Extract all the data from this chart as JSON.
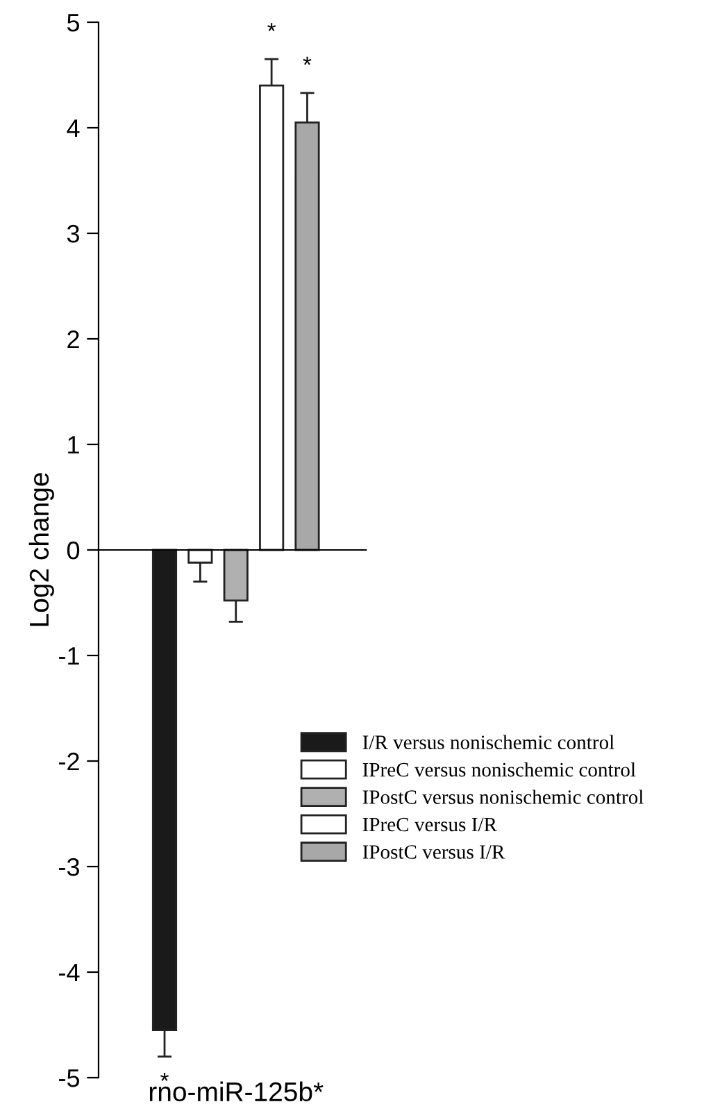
{
  "chart_data": {
    "type": "bar",
    "ylabel": "Log2 change",
    "categories": [
      "rno-miR-125b*"
    ],
    "series": [
      {
        "name": "I/R versus nonischemic control",
        "color": "#1a1a1a",
        "values": [
          -4.55
        ],
        "errors": [
          [
            -4.8,
            -4.55
          ]
        ]
      },
      {
        "name": "IPreC versus nonischemic control",
        "color": "#ffffff",
        "values": [
          -0.12
        ],
        "errors": [
          [
            -0.3,
            -0.12
          ]
        ]
      },
      {
        "name": "IPostC versus nonischemic control",
        "color": "#b0b0b0",
        "values": [
          -0.48
        ],
        "errors": [
          [
            -0.68,
            -0.48
          ]
        ]
      },
      {
        "name": "IPreC versus I/R",
        "color": "#ffffff",
        "values": [
          4.4
        ],
        "errors": [
          [
            4.4,
            4.65
          ]
        ]
      },
      {
        "name": "IPostC versus I/R",
        "color": "#a8a8a8",
        "values": [
          4.05
        ],
        "errors": [
          [
            4.05,
            4.33
          ]
        ]
      }
    ],
    "ylim": [
      -5,
      5
    ],
    "yticks": [
      -5,
      -4,
      -3,
      -2,
      -1,
      0,
      1,
      2,
      3,
      4,
      5
    ],
    "annotations": [
      "*",
      "*",
      "*"
    ],
    "legend": "right"
  }
}
